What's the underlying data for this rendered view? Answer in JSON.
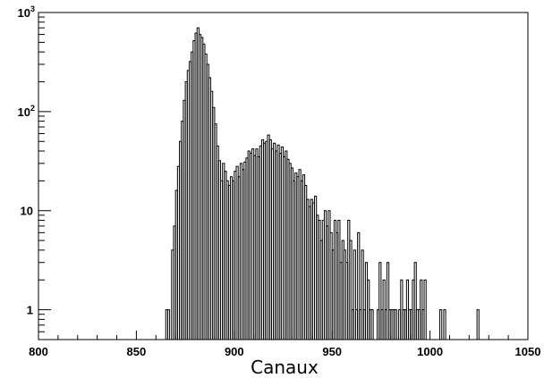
{
  "chart_data": {
    "type": "histogram",
    "xlabel": "Canaux",
    "ylabel": "",
    "title": "",
    "xlim": [
      800,
      1050
    ],
    "ylim": [
      0.5,
      1000
    ],
    "yscale": "log",
    "x_ticks": [
      800,
      850,
      900,
      950,
      1000,
      1050
    ],
    "y_ticks": [
      {
        "value": 1,
        "base": "1",
        "exp": ""
      },
      {
        "value": 10,
        "base": "10",
        "exp": ""
      },
      {
        "value": 100,
        "base": "10",
        "exp": "2"
      },
      {
        "value": 1000,
        "base": "10",
        "exp": "3"
      }
    ],
    "bin_width": 1,
    "bins": [
      [
        865,
        1
      ],
      [
        866,
        1
      ],
      [
        867,
        0
      ],
      [
        868,
        4
      ],
      [
        869,
        7
      ],
      [
        870,
        16
      ],
      [
        871,
        28
      ],
      [
        872,
        50
      ],
      [
        873,
        80
      ],
      [
        874,
        130
      ],
      [
        875,
        200
      ],
      [
        876,
        260
      ],
      [
        877,
        320
      ],
      [
        878,
        400
      ],
      [
        879,
        520
      ],
      [
        880,
        620
      ],
      [
        881,
        700
      ],
      [
        882,
        600
      ],
      [
        883,
        560
      ],
      [
        884,
        480
      ],
      [
        885,
        380
      ],
      [
        886,
        300
      ],
      [
        887,
        220
      ],
      [
        888,
        160
      ],
      [
        889,
        110
      ],
      [
        890,
        75
      ],
      [
        891,
        45
      ],
      [
        892,
        32
      ],
      [
        893,
        20
      ],
      [
        894,
        30
      ],
      [
        895,
        25
      ],
      [
        896,
        20
      ],
      [
        897,
        18
      ],
      [
        898,
        22
      ],
      [
        899,
        20
      ],
      [
        900,
        25
      ],
      [
        901,
        28
      ],
      [
        902,
        22
      ],
      [
        903,
        30
      ],
      [
        904,
        26
      ],
      [
        905,
        31
      ],
      [
        906,
        34
      ],
      [
        907,
        40
      ],
      [
        908,
        38
      ],
      [
        909,
        42
      ],
      [
        910,
        36
      ],
      [
        911,
        42
      ],
      [
        912,
        35
      ],
      [
        913,
        45
      ],
      [
        914,
        52
      ],
      [
        915,
        48
      ],
      [
        916,
        50
      ],
      [
        917,
        58
      ],
      [
        918,
        52
      ],
      [
        919,
        42
      ],
      [
        920,
        48
      ],
      [
        921,
        40
      ],
      [
        922,
        46
      ],
      [
        923,
        38
      ],
      [
        924,
        44
      ],
      [
        925,
        35
      ],
      [
        926,
        40
      ],
      [
        927,
        33
      ],
      [
        928,
        30
      ],
      [
        929,
        27
      ],
      [
        930,
        20
      ],
      [
        931,
        24
      ],
      [
        932,
        22
      ],
      [
        933,
        26
      ],
      [
        934,
        20
      ],
      [
        935,
        23
      ],
      [
        936,
        18
      ],
      [
        937,
        13
      ],
      [
        938,
        11
      ],
      [
        939,
        13
      ],
      [
        940,
        12
      ],
      [
        941,
        14
      ],
      [
        942,
        9
      ],
      [
        943,
        8
      ],
      [
        944,
        5
      ],
      [
        945,
        8
      ],
      [
        946,
        10
      ],
      [
        947,
        7
      ],
      [
        948,
        10
      ],
      [
        949,
        6
      ],
      [
        950,
        4
      ],
      [
        951,
        8
      ],
      [
        952,
        6
      ],
      [
        953,
        8
      ],
      [
        954,
        3
      ],
      [
        955,
        5
      ],
      [
        956,
        4
      ],
      [
        957,
        3
      ],
      [
        958,
        8
      ],
      [
        959,
        5
      ],
      [
        960,
        1
      ],
      [
        961,
        4
      ],
      [
        962,
        1
      ],
      [
        963,
        6
      ],
      [
        964,
        1
      ],
      [
        965,
        4
      ],
      [
        966,
        1
      ],
      [
        967,
        3
      ],
      [
        968,
        2
      ],
      [
        969,
        1
      ],
      [
        970,
        1
      ],
      [
        971,
        0
      ],
      [
        972,
        0
      ],
      [
        973,
        1
      ],
      [
        974,
        3
      ],
      [
        975,
        1
      ],
      [
        976,
        2
      ],
      [
        977,
        1
      ],
      [
        978,
        3
      ],
      [
        979,
        1
      ],
      [
        980,
        1
      ],
      [
        981,
        1
      ],
      [
        982,
        1
      ],
      [
        983,
        0
      ],
      [
        984,
        1
      ],
      [
        985,
        2
      ],
      [
        986,
        1
      ],
      [
        987,
        1
      ],
      [
        988,
        2
      ],
      [
        989,
        1
      ],
      [
        990,
        1
      ],
      [
        991,
        2
      ],
      [
        992,
        3
      ],
      [
        993,
        1
      ],
      [
        994,
        1
      ],
      [
        995,
        2
      ],
      [
        996,
        1
      ],
      [
        997,
        2
      ],
      [
        998,
        0
      ],
      [
        999,
        0
      ],
      [
        1000,
        0
      ],
      [
        1001,
        0
      ],
      [
        1002,
        0
      ],
      [
        1003,
        0
      ],
      [
        1004,
        0
      ],
      [
        1005,
        1
      ],
      [
        1006,
        0
      ],
      [
        1007,
        1
      ],
      [
        1008,
        0
      ],
      [
        1024,
        1
      ],
      [
        1025,
        0
      ]
    ]
  }
}
